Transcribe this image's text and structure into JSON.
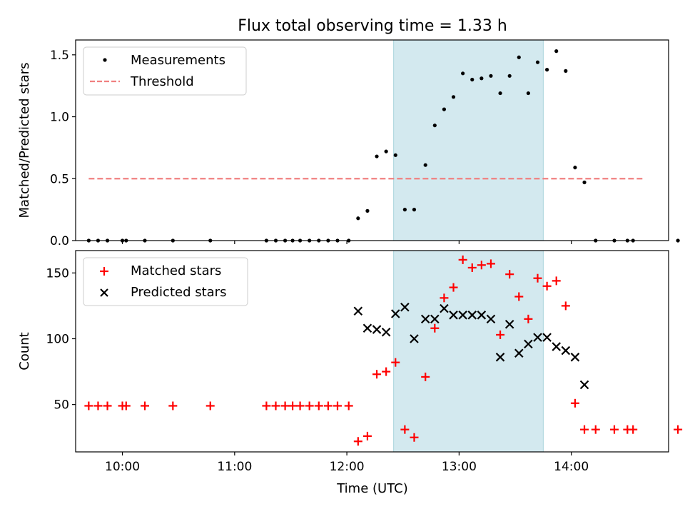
{
  "figure": {
    "title": "Flux total observing time = 1.33 h"
  },
  "chart_data": [
    {
      "type": "scatter",
      "panel": "top",
      "xlabel": "",
      "ylabel": "Matched/Predicted stars",
      "xlim": [
        "09:35",
        "14:52"
      ],
      "ylim": [
        0,
        1.62
      ],
      "yticks": [
        0.0,
        0.5,
        1.0,
        1.5
      ],
      "ytick_labels": [
        "0.0",
        "0.5",
        "1.0",
        "1.5"
      ],
      "xticks": [
        "10:00",
        "11:00",
        "12:00",
        "13:00",
        "14:00"
      ],
      "xtick_labels_visible": false,
      "grid": false,
      "legend": {
        "placement": "upper left",
        "entries": [
          "Measurements",
          "Threshold"
        ]
      },
      "highlight_span": {
        "from": "12:25",
        "to": "13:45",
        "color": "#d3e9ef",
        "edge": "#a8d3dc"
      },
      "threshold": {
        "name": "Threshold",
        "value": 0.5,
        "from": "09:42",
        "to": "14:38",
        "color": "#f08080",
        "style": "dashed"
      },
      "series": [
        {
          "name": "Measurements",
          "marker": "dot",
          "color": "#000000",
          "points": [
            [
              "09:42",
              0.0
            ],
            [
              "09:47",
              0.0
            ],
            [
              "09:52",
              0.0
            ],
            [
              "10:00",
              0.0
            ],
            [
              "10:02",
              0.0
            ],
            [
              "10:12",
              0.0
            ],
            [
              "10:27",
              0.0
            ],
            [
              "10:47",
              0.0
            ],
            [
              "11:17",
              0.0
            ],
            [
              "11:22",
              0.0
            ],
            [
              "11:27",
              0.0
            ],
            [
              "11:31",
              0.0
            ],
            [
              "11:35",
              0.0
            ],
            [
              "11:40",
              0.0
            ],
            [
              "11:45",
              0.0
            ],
            [
              "11:50",
              0.0
            ],
            [
              "11:55",
              0.0
            ],
            [
              "12:01",
              0.0
            ],
            [
              "12:06",
              0.18
            ],
            [
              "12:11",
              0.24
            ],
            [
              "12:16",
              0.68
            ],
            [
              "12:21",
              0.72
            ],
            [
              "12:26",
              0.69
            ],
            [
              "12:31",
              0.25
            ],
            [
              "12:36",
              0.25
            ],
            [
              "12:42",
              0.61
            ],
            [
              "12:47",
              0.93
            ],
            [
              "12:52",
              1.06
            ],
            [
              "12:57",
              1.16
            ],
            [
              "13:02",
              1.35
            ],
            [
              "13:07",
              1.3
            ],
            [
              "13:12",
              1.31
            ],
            [
              "13:17",
              1.33
            ],
            [
              "13:22",
              1.19
            ],
            [
              "13:27",
              1.33
            ],
            [
              "13:32",
              1.48
            ],
            [
              "13:37",
              1.19
            ],
            [
              "13:42",
              1.44
            ],
            [
              "13:47",
              1.38
            ],
            [
              "13:52",
              1.53
            ],
            [
              "13:57",
              1.37
            ],
            [
              "14:02",
              0.59
            ],
            [
              "14:07",
              0.47
            ],
            [
              "14:13",
              0.0
            ],
            [
              "14:23",
              0.0
            ],
            [
              "14:30",
              0.0
            ],
            [
              "14:33",
              0.0
            ],
            [
              "14:57",
              0.0
            ]
          ]
        }
      ]
    },
    {
      "type": "scatter",
      "panel": "bottom",
      "xlabel": "Time (UTC)",
      "ylabel": "Count",
      "xlim": [
        "09:35",
        "14:52"
      ],
      "ylim": [
        14,
        167
      ],
      "yticks": [
        50,
        100,
        150
      ],
      "ytick_labels": [
        "50",
        "100",
        "150"
      ],
      "xticks": [
        "10:00",
        "11:00",
        "12:00",
        "13:00",
        "14:00"
      ],
      "xtick_labels": [
        "10:00",
        "11:00",
        "12:00",
        "13:00",
        "14:00"
      ],
      "grid": false,
      "legend": {
        "placement": "upper left",
        "entries": [
          "Matched stars",
          "Predicted stars"
        ]
      },
      "highlight_span": {
        "from": "12:25",
        "to": "13:45",
        "color": "#d3e9ef",
        "edge": "#a8d3dc"
      },
      "series": [
        {
          "name": "Matched stars",
          "marker": "plus",
          "color": "#ff0000",
          "points": [
            [
              "09:42",
              49
            ],
            [
              "09:47",
              49
            ],
            [
              "09:52",
              49
            ],
            [
              "10:00",
              49
            ],
            [
              "10:02",
              49
            ],
            [
              "10:12",
              49
            ],
            [
              "10:27",
              49
            ],
            [
              "10:47",
              49
            ],
            [
              "11:17",
              49
            ],
            [
              "11:22",
              49
            ],
            [
              "11:27",
              49
            ],
            [
              "11:31",
              49
            ],
            [
              "11:35",
              49
            ],
            [
              "11:40",
              49
            ],
            [
              "11:45",
              49
            ],
            [
              "11:50",
              49
            ],
            [
              "11:55",
              49
            ],
            [
              "12:01",
              49
            ],
            [
              "12:06",
              22
            ],
            [
              "12:11",
              26
            ],
            [
              "12:16",
              73
            ],
            [
              "12:21",
              75
            ],
            [
              "12:26",
              82
            ],
            [
              "12:31",
              31
            ],
            [
              "12:36",
              25
            ],
            [
              "12:42",
              71
            ],
            [
              "12:47",
              108
            ],
            [
              "12:52",
              131
            ],
            [
              "12:57",
              139
            ],
            [
              "13:02",
              160
            ],
            [
              "13:07",
              154
            ],
            [
              "13:12",
              156
            ],
            [
              "13:17",
              157
            ],
            [
              "13:22",
              103
            ],
            [
              "13:27",
              149
            ],
            [
              "13:32",
              132
            ],
            [
              "13:37",
              115
            ],
            [
              "13:42",
              146
            ],
            [
              "13:47",
              140
            ],
            [
              "13:52",
              144
            ],
            [
              "13:57",
              125
            ],
            [
              "14:02",
              51
            ],
            [
              "14:07",
              31
            ],
            [
              "14:13",
              31
            ],
            [
              "14:23",
              31
            ],
            [
              "14:30",
              31
            ],
            [
              "14:33",
              31
            ],
            [
              "14:57",
              31
            ]
          ]
        },
        {
          "name": "Predicted stars",
          "marker": "x",
          "color": "#000000",
          "points": [
            [
              "12:06",
              121
            ],
            [
              "12:11",
              108
            ],
            [
              "12:16",
              107
            ],
            [
              "12:21",
              105
            ],
            [
              "12:26",
              119
            ],
            [
              "12:31",
              124
            ],
            [
              "12:36",
              100
            ],
            [
              "12:42",
              115
            ],
            [
              "12:47",
              115
            ],
            [
              "12:52",
              123
            ],
            [
              "12:57",
              118
            ],
            [
              "13:02",
              118
            ],
            [
              "13:07",
              118
            ],
            [
              "13:12",
              118
            ],
            [
              "13:17",
              115
            ],
            [
              "13:22",
              86
            ],
            [
              "13:27",
              111
            ],
            [
              "13:32",
              89
            ],
            [
              "13:37",
              96
            ],
            [
              "13:42",
              101
            ],
            [
              "13:47",
              101
            ],
            [
              "13:52",
              94
            ],
            [
              "13:57",
              91
            ],
            [
              "14:02",
              86
            ],
            [
              "14:07",
              65
            ]
          ]
        }
      ]
    }
  ]
}
